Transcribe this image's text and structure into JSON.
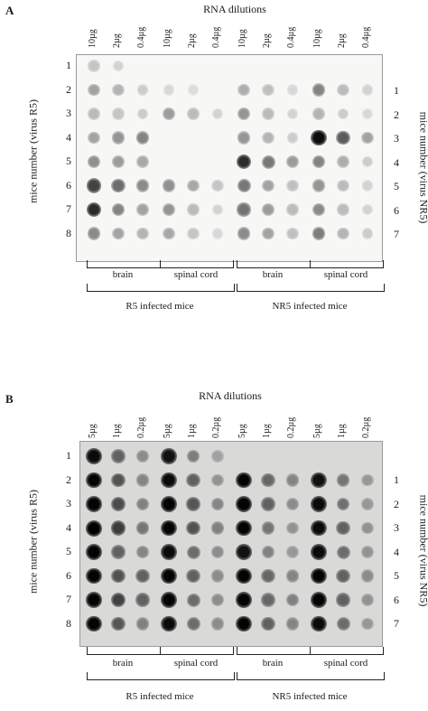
{
  "panels": [
    {
      "id": "A",
      "label": "A",
      "title": "RNA dilutions",
      "columns": [
        "10µg",
        "2µg",
        "0.4µg",
        "10µg",
        "2µg",
        "0.4µg",
        "10µg",
        "2µg",
        "0.4µg",
        "10µg",
        "2µg",
        "0.4µg"
      ],
      "left_axis": "mice number (virus R5)",
      "right_axis": "mice number (virus NR5)",
      "left_rows": [
        "1",
        "2",
        "3",
        "4",
        "5",
        "6",
        "7",
        "8"
      ],
      "right_rows": [
        "1",
        "2",
        "3",
        "4",
        "5",
        "6",
        "7"
      ],
      "tissue_labels": [
        "brain",
        "spinal cord",
        "brain",
        "spinal cord"
      ],
      "group_labels": [
        "R5 infected mice",
        "NR5 infected mice"
      ]
    },
    {
      "id": "B",
      "label": "B",
      "title": "RNA dilutions",
      "columns": [
        "5µg",
        "1µg",
        "0.2µg",
        "5µg",
        "1µg",
        "0.2µg",
        "5µg",
        "1µg",
        "0.2µg",
        "5µg",
        "1µg",
        "0.2µg"
      ],
      "left_axis": "mice number (virus R5)",
      "right_axis": "mice number (virus NR5)",
      "left_rows": [
        "1",
        "2",
        "3",
        "4",
        "5",
        "6",
        "7",
        "8"
      ],
      "right_rows": [
        "1",
        "2",
        "3",
        "4",
        "5",
        "6",
        "7"
      ],
      "tissue_labels": [
        "brain",
        "spinal cord",
        "brain",
        "spinal cord"
      ],
      "group_labels": [
        "R5 infected mice",
        "NR5 infected mice"
      ]
    }
  ]
}
